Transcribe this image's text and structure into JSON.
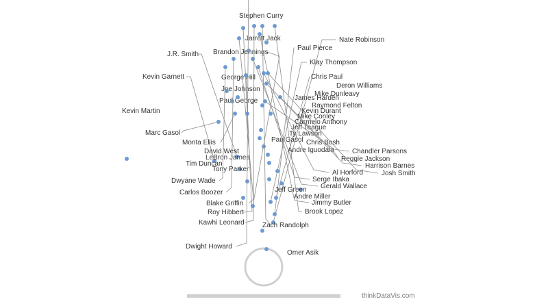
{
  "chart_data": {
    "type": "scatter",
    "title": "",
    "xlabel": "",
    "ylabel": "",
    "colors": {
      "point": "#6e9bd1",
      "court": "#d0d0d0",
      "leader": "#8a8a8a",
      "text": "#333333"
    },
    "points": [
      {
        "label": "Stephen Curry",
        "x": 0.4,
        "y": 2.6
      },
      {
        "label": "Jarrett Jack",
        "x": -0.2,
        "y": 5.3
      },
      {
        "label": "Nate Robinson",
        "x": 1.4,
        "y": 6.5
      },
      {
        "label": "Paul Pierce",
        "x": 1.6,
        "y": 7.7
      },
      {
        "label": "Brandon Jennings",
        "x": -1.6,
        "y": 8.9
      },
      {
        "label": "J.R. Smith",
        "x": -3.9,
        "y": 16.1
      },
      {
        "label": "Klay Thompson",
        "x": 1.0,
        "y": 9.5
      },
      {
        "label": "George Hill",
        "x": -3.0,
        "y": 10.1
      },
      {
        "label": "Chris Paul",
        "x": 1.8,
        "y": 10.1
      },
      {
        "label": "Kevin Garnett",
        "x": -7.2,
        "y": 15.5
      },
      {
        "label": "Joe Johnson",
        "x": -2.4,
        "y": 12.5
      },
      {
        "label": "Deron Williams",
        "x": 5.4,
        "y": 11.3
      },
      {
        "label": "Mike Dunleavy",
        "x": 2.6,
        "y": 12.2
      },
      {
        "label": "Paul George",
        "x": -3.5,
        "y": 14.3
      },
      {
        "label": "James Harden",
        "x": 0.8,
        "y": 12.8
      },
      {
        "label": "Raymond Felton",
        "x": 2.0,
        "y": 14.0
      },
      {
        "label": "Kevin Martin",
        "x": -20.0,
        "y": 15.8
      },
      {
        "label": "Kevin Durant",
        "x": 0.8,
        "y": 15.2
      },
      {
        "label": "Mike Conley",
        "x": 0.6,
        "y": 16.4
      },
      {
        "label": "Carmelo Anthony",
        "x": 0.0,
        "y": 17.6
      },
      {
        "label": "Jeff Teague",
        "x": -0.6,
        "y": 18.8
      },
      {
        "label": "Ty Lawson",
        "x": -0.4,
        "y": 20.0
      },
      {
        "label": "Marc Gasol",
        "x": -6.6,
        "y": 21.2
      },
      {
        "label": "Monta Ellis",
        "x": -4.2,
        "y": 22.4
      },
      {
        "label": "Pau Gasol",
        "x": -2.4,
        "y": 22.4
      },
      {
        "label": "Chris Bosh",
        "x": 1.0,
        "y": 22.4
      },
      {
        "label": "Andre Iguodala",
        "x": -0.2,
        "y": 23.6
      },
      {
        "label": "Chandler Parsons",
        "x": 0.2,
        "y": 24.2
      },
      {
        "label": "David West",
        "x": -4.6,
        "y": 24.2
      },
      {
        "label": "Reggie Jackson",
        "x": 2.4,
        "y": 24.8
      },
      {
        "label": "LeBron James",
        "x": -3.8,
        "y": 24.8
      },
      {
        "label": "Tim Duncan",
        "x": -5.4,
        "y": 25.7
      },
      {
        "label": "Harrison Barnes",
        "x": 0.4,
        "y": 26.8
      },
      {
        "label": "Tony Parker",
        "x": -2.6,
        "y": 28.0
      },
      {
        "label": "Al Horford",
        "x": 0.0,
        "y": 28.3
      },
      {
        "label": "Josh Smith",
        "x": 0.6,
        "y": 28.3
      },
      {
        "label": "Dwyane Wade",
        "x": -5.6,
        "y": 29.2
      },
      {
        "label": "Serge Ibaka",
        "x": -0.8,
        "y": 29.2
      },
      {
        "label": "Gerald Wallace",
        "x": -1.6,
        "y": 30.4
      },
      {
        "label": "Carlos Boozer",
        "x": -4.4,
        "y": 30.4
      },
      {
        "label": "Jeff Green",
        "x": -2.2,
        "y": 31.6
      },
      {
        "label": "Andre Miller",
        "x": 0.4,
        "y": 32.8
      },
      {
        "label": "Blake Griffin",
        "x": -3.6,
        "y": 33.4
      },
      {
        "label": "Jimmy Butler",
        "x": -0.6,
        "y": 34.0
      },
      {
        "label": "Roy Hibbert",
        "x": -3.0,
        "y": 34.9
      },
      {
        "label": "Brook Lopez",
        "x": 1.6,
        "y": 35.2
      },
      {
        "label": "Kawhi Leonard",
        "x": -1.4,
        "y": 35.2
      },
      {
        "label": "Zach Randolph",
        "x": -0.2,
        "y": 35.2
      },
      {
        "label": "Dwight Howard",
        "x": -2.2,
        "y": 41.5
      },
      {
        "label": "Omer Asik",
        "x": -0.2,
        "y": 43.9
      }
    ],
    "credit": "thinkDataVis.com"
  }
}
